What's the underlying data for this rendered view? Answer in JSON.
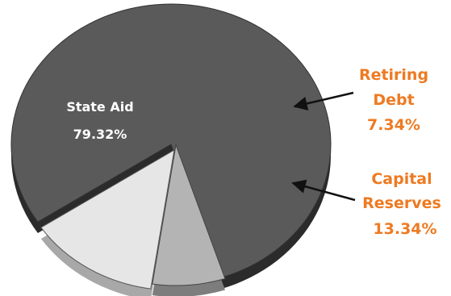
{
  "chart_data": {
    "type": "pie",
    "title": "",
    "legend": "none",
    "slices": [
      {
        "name": "State Aid",
        "label": "State Aid",
        "value_label": "79.32%",
        "value": 79.32,
        "color": "#5a5a5a",
        "side_color": "#2b2b2b"
      },
      {
        "name": "Retiring Debt",
        "label_lines": [
          "Retiring",
          "Debt"
        ],
        "value_label": "7.34%",
        "value": 7.34,
        "color": "#b4b4b4",
        "side_color": "#7d7d7d"
      },
      {
        "name": "Capital Reserves",
        "label_lines": [
          "Capital",
          "Reserves"
        ],
        "value_label": "13.34%",
        "value": 13.34,
        "color": "#e6e6e6",
        "side_color": "#a8a8a8"
      }
    ],
    "label_color": "#ee7a22"
  }
}
